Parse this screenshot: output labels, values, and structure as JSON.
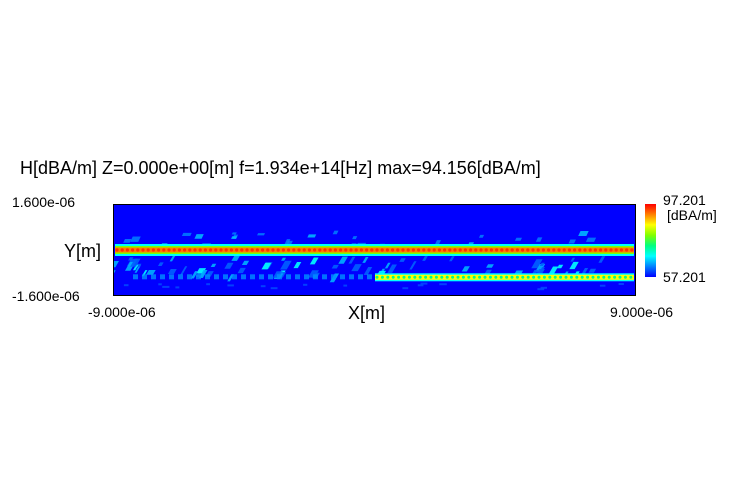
{
  "chart_data": {
    "type": "heatmap",
    "title": "H[dBA/m] Z=0.000e+00[m] f=1.934e+14[Hz] max=94.156[dBA/m]",
    "xlabel": "X[m]",
    "ylabel": "Y[m]",
    "xlim": [
      -9e-06,
      9e-06
    ],
    "ylim": [
      -1.6e-06,
      1.6e-06
    ],
    "x_tick_labels": [
      "-9.000e-06",
      "9.000e-06"
    ],
    "y_tick_labels": [
      "1.600e-06",
      "-1.600e-06"
    ],
    "colorbar": {
      "unit": "[dBA/m]",
      "min_label": "57.201",
      "max_label": "97.201",
      "min": 57.201,
      "max": 97.201,
      "colormap": [
        "#0000ff",
        "#0080ff",
        "#00ffff",
        "#00ff80",
        "#80ff00",
        "#ffff00",
        "#ff8000",
        "#ff0000"
      ]
    },
    "field": {
      "max": 94.156,
      "background": 57.201,
      "bands": [
        {
          "name": "upper waveguide",
          "y": 0.0,
          "value": 90.5
        },
        {
          "name": "lower waveguide",
          "y": -9.5e-07,
          "value": 84.0
        }
      ]
    }
  }
}
